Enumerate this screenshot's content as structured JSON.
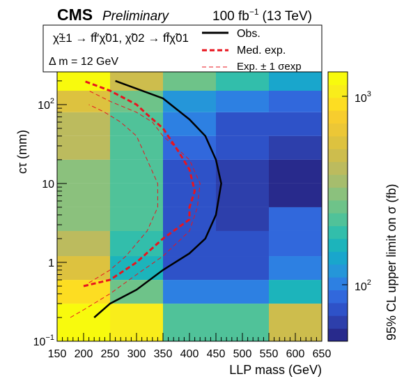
{
  "header": {
    "experiment": "CMS",
    "status": "Preliminary",
    "lumi_value": "100 fb",
    "lumi_exp": "−1",
    "energy": "(13 TeV)"
  },
  "legend": {
    "process_line1": "χ̃±1 → ff̄′χ̃01, χ̃02 → ff̄χ̃01",
    "process_line2": "Δ m = 12 GeV",
    "entries": [
      "Obs.",
      "Med. exp.",
      "Exp. ± 1 σexp"
    ]
  },
  "colorbar": {
    "label": "95% CL upper limit on σ (fb)",
    "tick_top": "10",
    "tick_top_exp": "3",
    "tick_bottom": "10",
    "tick_bottom_exp": "2",
    "colors": [
      "#282a8c",
      "#2d3fab",
      "#2e52c8",
      "#3168dc",
      "#2d80e2",
      "#2596d9",
      "#19a6cc",
      "#1cb4bb",
      "#32beab",
      "#50c299",
      "#6ec389",
      "#8bc17d",
      "#a6bd6d",
      "#bcbb5e",
      "#cdbd4d",
      "#ddc23f",
      "#ecc736",
      "#f7cd2e",
      "#fddd22",
      "#f9ed1b",
      "#f8fa0d"
    ]
  },
  "axes": {
    "xlabel": "LLP mass (GeV)",
    "ylabel": "cτ (mm)",
    "xticks": [
      "150",
      "200",
      "250",
      "300",
      "350",
      "400",
      "450",
      "500",
      "550",
      "600",
      "650"
    ],
    "yticks": [
      {
        "base": "10",
        "exp": "−1"
      },
      {
        "base": "1",
        "exp": ""
      },
      {
        "base": "10",
        "exp": ""
      },
      {
        "base": "10",
        "exp": "2"
      }
    ]
  },
  "chart_data": {
    "type": "heatmap",
    "title": "",
    "xlabel": "LLP mass (GeV)",
    "ylabel": "cτ (mm)",
    "zlabel": "95% CL upper limit on σ (fb)",
    "xlim": [
      150,
      650
    ],
    "ylim": [
      0.1,
      260
    ],
    "ylog": true,
    "zlim": [
      40,
      1600
    ],
    "zlog": true,
    "x_edges": [
      150,
      250,
      350,
      450,
      550,
      650
    ],
    "y_edges": [
      0.1,
      0.3,
      0.6,
      1.2,
      2.5,
      5,
      10,
      20,
      40,
      80,
      150,
      260
    ],
    "z": [
      [
        1600,
        1200,
        220,
        220,
        500
      ],
      [
        1000,
        250,
        90,
        90,
        150
      ],
      [
        600,
        150,
        65,
        65,
        90
      ],
      [
        400,
        170,
        65,
        60,
        80
      ],
      [
        300,
        200,
        60,
        55,
        70
      ],
      [
        280,
        200,
        65,
        50,
        45
      ],
      [
        300,
        200,
        65,
        50,
        45
      ],
      [
        400,
        200,
        70,
        60,
        50
      ],
      [
        450,
        220,
        85,
        65,
        60
      ],
      [
        650,
        250,
        110,
        90,
        80
      ],
      [
        1500,
        500,
        250,
        170,
        120
      ]
    ],
    "series": [
      {
        "name": "Obs.",
        "style": "solid-black",
        "x": [
          220,
          250,
          300,
          350,
          400,
          430,
          450,
          460,
          450,
          430,
          400,
          350,
          260
        ],
        "y": [
          0.2,
          0.3,
          0.45,
          0.8,
          1.3,
          2,
          4,
          10,
          20,
          40,
          65,
          120,
          200
        ]
      },
      {
        "name": "Med. exp.",
        "style": "dashed-thick-red",
        "x": [
          200,
          250,
          300,
          350,
          400,
          400,
          410,
          400,
          380,
          350,
          320,
          300,
          250,
          200
        ],
        "y": [
          0.5,
          0.6,
          1,
          2,
          3.5,
          5,
          8,
          15,
          25,
          50,
          75,
          100,
          150,
          200
        ]
      },
      {
        "name": "Exp. +1 σ",
        "style": "dashed-thin-red",
        "x": [
          175,
          200,
          250,
          300,
          350,
          400,
          415,
          420,
          400,
          350,
          330,
          300,
          250,
          210
        ],
        "y": [
          0.2,
          0.25,
          0.4,
          0.7,
          1.2,
          2.5,
          5,
          10,
          20,
          40,
          60,
          80,
          110,
          150
        ]
      },
      {
        "name": "Exp. −1 σ",
        "style": "dashed-thin-red",
        "x": [
          210,
          250,
          280,
          320,
          340,
          340,
          320,
          300,
          270,
          240,
          210
        ],
        "y": [
          0.55,
          0.8,
          1.2,
          2.5,
          5,
          10,
          20,
          40,
          60,
          80,
          100
        ]
      }
    ],
    "legend_position": "top-left inside plot"
  }
}
